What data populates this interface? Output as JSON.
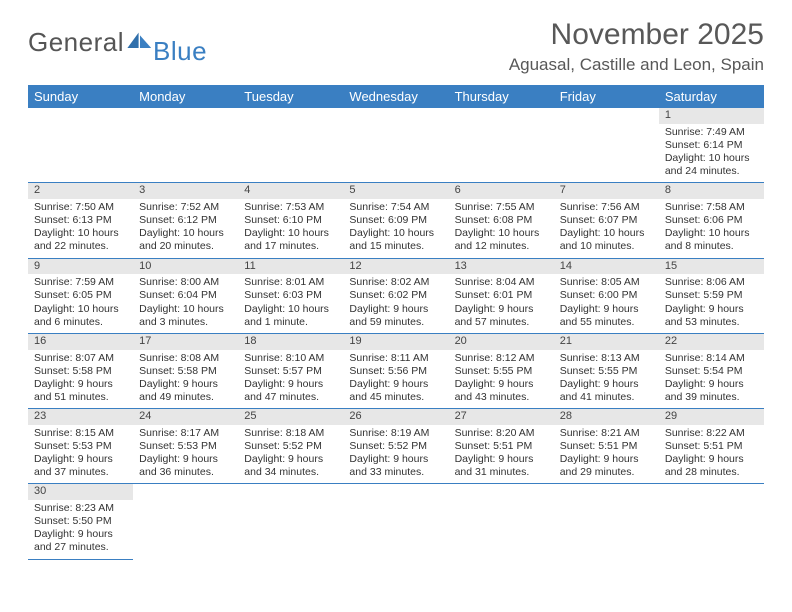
{
  "logo": {
    "text1": "General",
    "text2": "Blue"
  },
  "title": {
    "monthyear": "November 2025",
    "location": "Aguasal, Castille and Leon, Spain"
  },
  "colors": {
    "header_bg": "#3a7fc2",
    "header_fg": "#ffffff",
    "daynum_bg": "#e7e7e7",
    "rule": "#3a7fc2",
    "text": "#333333",
    "brand": "#3a7fc2"
  },
  "days_of_week": [
    "Sunday",
    "Monday",
    "Tuesday",
    "Wednesday",
    "Thursday",
    "Friday",
    "Saturday"
  ],
  "weeks": [
    [
      null,
      null,
      null,
      null,
      null,
      null,
      {
        "n": "1",
        "sr": "Sunrise: 7:49 AM",
        "ss": "Sunset: 6:14 PM",
        "d1": "Daylight: 10 hours",
        "d2": "and 24 minutes."
      }
    ],
    [
      {
        "n": "2",
        "sr": "Sunrise: 7:50 AM",
        "ss": "Sunset: 6:13 PM",
        "d1": "Daylight: 10 hours",
        "d2": "and 22 minutes."
      },
      {
        "n": "3",
        "sr": "Sunrise: 7:52 AM",
        "ss": "Sunset: 6:12 PM",
        "d1": "Daylight: 10 hours",
        "d2": "and 20 minutes."
      },
      {
        "n": "4",
        "sr": "Sunrise: 7:53 AM",
        "ss": "Sunset: 6:10 PM",
        "d1": "Daylight: 10 hours",
        "d2": "and 17 minutes."
      },
      {
        "n": "5",
        "sr": "Sunrise: 7:54 AM",
        "ss": "Sunset: 6:09 PM",
        "d1": "Daylight: 10 hours",
        "d2": "and 15 minutes."
      },
      {
        "n": "6",
        "sr": "Sunrise: 7:55 AM",
        "ss": "Sunset: 6:08 PM",
        "d1": "Daylight: 10 hours",
        "d2": "and 12 minutes."
      },
      {
        "n": "7",
        "sr": "Sunrise: 7:56 AM",
        "ss": "Sunset: 6:07 PM",
        "d1": "Daylight: 10 hours",
        "d2": "and 10 minutes."
      },
      {
        "n": "8",
        "sr": "Sunrise: 7:58 AM",
        "ss": "Sunset: 6:06 PM",
        "d1": "Daylight: 10 hours",
        "d2": "and 8 minutes."
      }
    ],
    [
      {
        "n": "9",
        "sr": "Sunrise: 7:59 AM",
        "ss": "Sunset: 6:05 PM",
        "d1": "Daylight: 10 hours",
        "d2": "and 6 minutes."
      },
      {
        "n": "10",
        "sr": "Sunrise: 8:00 AM",
        "ss": "Sunset: 6:04 PM",
        "d1": "Daylight: 10 hours",
        "d2": "and 3 minutes."
      },
      {
        "n": "11",
        "sr": "Sunrise: 8:01 AM",
        "ss": "Sunset: 6:03 PM",
        "d1": "Daylight: 10 hours",
        "d2": "and 1 minute."
      },
      {
        "n": "12",
        "sr": "Sunrise: 8:02 AM",
        "ss": "Sunset: 6:02 PM",
        "d1": "Daylight: 9 hours",
        "d2": "and 59 minutes."
      },
      {
        "n": "13",
        "sr": "Sunrise: 8:04 AM",
        "ss": "Sunset: 6:01 PM",
        "d1": "Daylight: 9 hours",
        "d2": "and 57 minutes."
      },
      {
        "n": "14",
        "sr": "Sunrise: 8:05 AM",
        "ss": "Sunset: 6:00 PM",
        "d1": "Daylight: 9 hours",
        "d2": "and 55 minutes."
      },
      {
        "n": "15",
        "sr": "Sunrise: 8:06 AM",
        "ss": "Sunset: 5:59 PM",
        "d1": "Daylight: 9 hours",
        "d2": "and 53 minutes."
      }
    ],
    [
      {
        "n": "16",
        "sr": "Sunrise: 8:07 AM",
        "ss": "Sunset: 5:58 PM",
        "d1": "Daylight: 9 hours",
        "d2": "and 51 minutes."
      },
      {
        "n": "17",
        "sr": "Sunrise: 8:08 AM",
        "ss": "Sunset: 5:58 PM",
        "d1": "Daylight: 9 hours",
        "d2": "and 49 minutes."
      },
      {
        "n": "18",
        "sr": "Sunrise: 8:10 AM",
        "ss": "Sunset: 5:57 PM",
        "d1": "Daylight: 9 hours",
        "d2": "and 47 minutes."
      },
      {
        "n": "19",
        "sr": "Sunrise: 8:11 AM",
        "ss": "Sunset: 5:56 PM",
        "d1": "Daylight: 9 hours",
        "d2": "and 45 minutes."
      },
      {
        "n": "20",
        "sr": "Sunrise: 8:12 AM",
        "ss": "Sunset: 5:55 PM",
        "d1": "Daylight: 9 hours",
        "d2": "and 43 minutes."
      },
      {
        "n": "21",
        "sr": "Sunrise: 8:13 AM",
        "ss": "Sunset: 5:55 PM",
        "d1": "Daylight: 9 hours",
        "d2": "and 41 minutes."
      },
      {
        "n": "22",
        "sr": "Sunrise: 8:14 AM",
        "ss": "Sunset: 5:54 PM",
        "d1": "Daylight: 9 hours",
        "d2": "and 39 minutes."
      }
    ],
    [
      {
        "n": "23",
        "sr": "Sunrise: 8:15 AM",
        "ss": "Sunset: 5:53 PM",
        "d1": "Daylight: 9 hours",
        "d2": "and 37 minutes."
      },
      {
        "n": "24",
        "sr": "Sunrise: 8:17 AM",
        "ss": "Sunset: 5:53 PM",
        "d1": "Daylight: 9 hours",
        "d2": "and 36 minutes."
      },
      {
        "n": "25",
        "sr": "Sunrise: 8:18 AM",
        "ss": "Sunset: 5:52 PM",
        "d1": "Daylight: 9 hours",
        "d2": "and 34 minutes."
      },
      {
        "n": "26",
        "sr": "Sunrise: 8:19 AM",
        "ss": "Sunset: 5:52 PM",
        "d1": "Daylight: 9 hours",
        "d2": "and 33 minutes."
      },
      {
        "n": "27",
        "sr": "Sunrise: 8:20 AM",
        "ss": "Sunset: 5:51 PM",
        "d1": "Daylight: 9 hours",
        "d2": "and 31 minutes."
      },
      {
        "n": "28",
        "sr": "Sunrise: 8:21 AM",
        "ss": "Sunset: 5:51 PM",
        "d1": "Daylight: 9 hours",
        "d2": "and 29 minutes."
      },
      {
        "n": "29",
        "sr": "Sunrise: 8:22 AM",
        "ss": "Sunset: 5:51 PM",
        "d1": "Daylight: 9 hours",
        "d2": "and 28 minutes."
      }
    ],
    [
      {
        "n": "30",
        "sr": "Sunrise: 8:23 AM",
        "ss": "Sunset: 5:50 PM",
        "d1": "Daylight: 9 hours",
        "d2": "and 27 minutes."
      },
      null,
      null,
      null,
      null,
      null,
      null
    ]
  ]
}
